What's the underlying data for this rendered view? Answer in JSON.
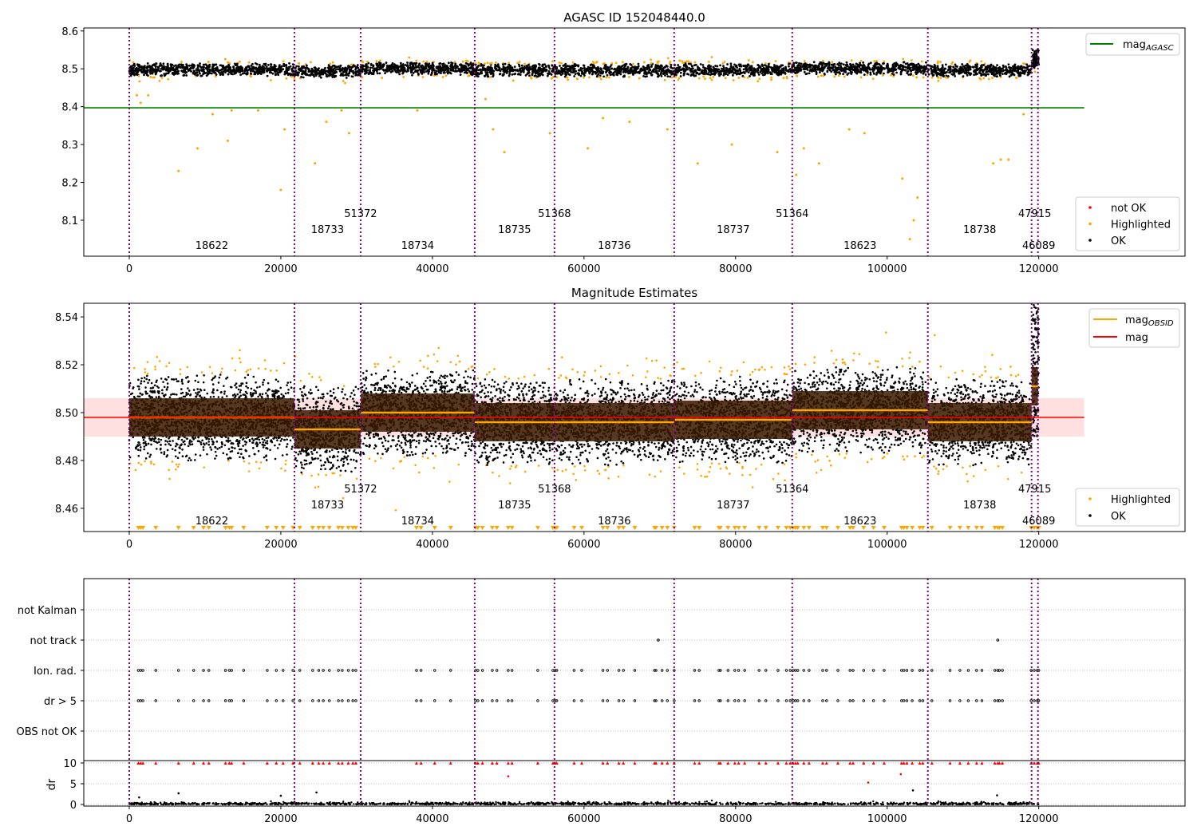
{
  "chart_data": [
    {
      "type": "scatter",
      "title": "AGASC ID 152048440.0",
      "xlim": [
        -6000,
        139300
      ],
      "ylim": [
        8.005,
        8.608
      ],
      "xticks": [
        0,
        20000,
        40000,
        60000,
        80000,
        100000,
        120000
      ],
      "xtick_labels": [
        "0",
        "20000",
        "40000",
        "60000",
        "80000",
        "100000",
        "120000"
      ],
      "yticks": [
        8.1,
        8.2,
        8.3,
        8.4,
        8.5,
        8.6
      ],
      "ytick_labels": [
        "8.1",
        "8.2",
        "8.3",
        "8.4",
        "8.5",
        "8.6"
      ],
      "mag_agasc": 8.397,
      "legend_line": {
        "label": "mag",
        "sub": "AGASC",
        "color": "#008000"
      },
      "legend_points": [
        {
          "label": "not OK",
          "color": "#ff0000"
        },
        {
          "label": "Highlighted",
          "color": "#ffa500"
        },
        {
          "label": "OK",
          "color": "#000000"
        }
      ],
      "outliers": [
        [
          1000,
          8.43
        ],
        [
          1500,
          8.41
        ],
        [
          2500,
          8.43
        ],
        [
          6500,
          8.23
        ],
        [
          9000,
          8.29
        ],
        [
          11000,
          8.38
        ],
        [
          13000,
          8.31
        ],
        [
          13500,
          8.39
        ],
        [
          17000,
          8.39
        ],
        [
          20000,
          8.18
        ],
        [
          20500,
          8.34
        ],
        [
          24500,
          8.25
        ],
        [
          26000,
          8.36
        ],
        [
          28000,
          8.39
        ],
        [
          29000,
          8.33
        ],
        [
          38000,
          8.39
        ],
        [
          47000,
          8.42
        ],
        [
          48000,
          8.34
        ],
        [
          49500,
          8.28
        ],
        [
          55500,
          8.33
        ],
        [
          60500,
          8.29
        ],
        [
          62500,
          8.37
        ],
        [
          66000,
          8.36
        ],
        [
          71000,
          8.34
        ],
        [
          75000,
          8.25
        ],
        [
          79500,
          8.3
        ],
        [
          85500,
          8.28
        ],
        [
          88000,
          8.22
        ],
        [
          89000,
          8.29
        ],
        [
          91000,
          8.25
        ],
        [
          95000,
          8.34
        ],
        [
          97000,
          8.33
        ],
        [
          102000,
          8.21
        ],
        [
          103000,
          8.05
        ],
        [
          103500,
          8.1
        ],
        [
          104000,
          8.16
        ],
        [
          114000,
          8.25
        ],
        [
          115000,
          8.26
        ],
        [
          116000,
          8.26
        ],
        [
          118000,
          8.38
        ]
      ]
    },
    {
      "type": "scatter",
      "title": "Magnitude Estimates",
      "xlim": [
        -6000,
        139300
      ],
      "ylim": [
        8.4503,
        8.5457
      ],
      "xticks": [
        0,
        20000,
        40000,
        60000,
        80000,
        100000,
        120000
      ],
      "xtick_labels": [
        "0",
        "20000",
        "40000",
        "60000",
        "80000",
        "100000",
        "120000"
      ],
      "yticks": [
        8.46,
        8.48,
        8.5,
        8.52,
        8.54
      ],
      "ytick_labels": [
        "8.46",
        "8.48",
        "8.50",
        "8.52",
        "8.54"
      ],
      "mag": 8.498,
      "mag_band": [
        8.49,
        8.506
      ],
      "legend_lines": [
        {
          "label": "mag",
          "sub": "OBSID",
          "color": "#ffa500"
        },
        {
          "label": "mag",
          "sub": "",
          "color": "#ff0000"
        }
      ],
      "legend_points": [
        {
          "label": "Highlighted",
          "color": "#ffa500"
        },
        {
          "label": "OK",
          "color": "#000000"
        }
      ]
    },
    {
      "type": "scatter",
      "title": "",
      "xlim": [
        -6000,
        139300
      ],
      "categories": [
        "not Kalman",
        "not track",
        "Ion. rad.",
        "dr > 5",
        "OBS not OK"
      ],
      "dr_ylabel": "dr",
      "dr_ylim": [
        -0.4,
        10.6
      ],
      "dr_yticks": [
        0,
        5,
        10
      ],
      "dr_ytick_labels": [
        "0",
        "5",
        "10"
      ],
      "not_kalman_x": [
        21800,
        56100,
        87500
      ],
      "not_track_x": [
        69800,
        114600
      ],
      "flag_x": [
        1200,
        1500,
        1800,
        3500,
        6500,
        8500,
        9800,
        10500,
        12700,
        13200,
        13500,
        15100,
        18200,
        19400,
        20300,
        21600,
        22500,
        24200,
        25000,
        25600,
        26400,
        27600,
        28100,
        28900,
        29500,
        29900,
        37900,
        38500,
        40300,
        42400,
        45700,
        46000,
        46600,
        47900,
        48500,
        50000,
        50500,
        53900,
        55900,
        56200,
        56400,
        58700,
        59700,
        62500,
        63100,
        64600,
        65200,
        66700,
        69300,
        69500,
        70300,
        71000,
        71900,
        74600,
        75200,
        77800,
        78000,
        79000,
        79900,
        80400,
        81200,
        83100,
        84000,
        85600,
        86700,
        87200,
        87600,
        87900,
        88200,
        89000,
        89700,
        91500,
        92000,
        93500,
        95100,
        95500,
        96900,
        98200,
        99600,
        101900,
        102200,
        102600,
        103300,
        104300,
        104700,
        105900,
        108300,
        109600,
        110700,
        111800,
        112500,
        114200,
        114600,
        114800,
        115200,
        119000,
        119400,
        119800,
        120000
      ],
      "dr_outliers": [
        [
          1300,
          1.7
        ],
        [
          6500,
          2.7
        ],
        [
          20000,
          2.1
        ],
        [
          24700,
          2.9
        ],
        [
          50000,
          6.8
        ],
        [
          97500,
          5.3
        ],
        [
          101800,
          7.3
        ],
        [
          103400,
          3.4
        ],
        [
          114500,
          2.2
        ]
      ]
    }
  ],
  "segments": [
    {
      "obsid": "18622",
      "start": 0,
      "end": 21789,
      "mag": 8.498,
      "row": 2
    },
    {
      "obsid": "18733",
      "start": 21789,
      "end": 30526,
      "mag": 8.493,
      "row": 1
    },
    {
      "obsid": "51372",
      "start": 30526,
      "end": 30526,
      "mag": null,
      "row": 0
    },
    {
      "obsid": "18734",
      "start": 30526,
      "end": 45579,
      "mag": 8.5,
      "row": 2
    },
    {
      "obsid": "18735",
      "start": 45579,
      "end": 56105,
      "mag": 8.496,
      "row": 1
    },
    {
      "obsid": "51368",
      "start": 56105,
      "end": 56105,
      "mag": null,
      "row": 0
    },
    {
      "obsid": "18736",
      "start": 56105,
      "end": 71895,
      "mag": 8.496,
      "row": 2
    },
    {
      "obsid": "18737",
      "start": 71895,
      "end": 87474,
      "mag": 8.497,
      "row": 1
    },
    {
      "obsid": "51364",
      "start": 87474,
      "end": 87474,
      "mag": null,
      "row": 0
    },
    {
      "obsid": "18623",
      "start": 87474,
      "end": 105368,
      "mag": 8.501,
      "row": 2
    },
    {
      "obsid": "18738",
      "start": 105368,
      "end": 119053,
      "mag": 8.496,
      "row": 1
    },
    {
      "obsid": "47915",
      "start": 119053,
      "end": 119895,
      "mag": 8.511,
      "row": 0
    },
    {
      "obsid": "46089",
      "start": 119895,
      "end": 120100,
      "mag": null,
      "row": 2
    }
  ],
  "boundaries": [
    0,
    21789,
    30526,
    45579,
    56105,
    71895,
    87474,
    105368,
    119053,
    119895
  ],
  "colors": {
    "ok": "#000000",
    "highlighted": "#ffa500",
    "not_ok": "#ff0000",
    "boundary": "#800080",
    "agasc": "#008000",
    "mag": "#ff0000",
    "band": "#ffcccc"
  }
}
